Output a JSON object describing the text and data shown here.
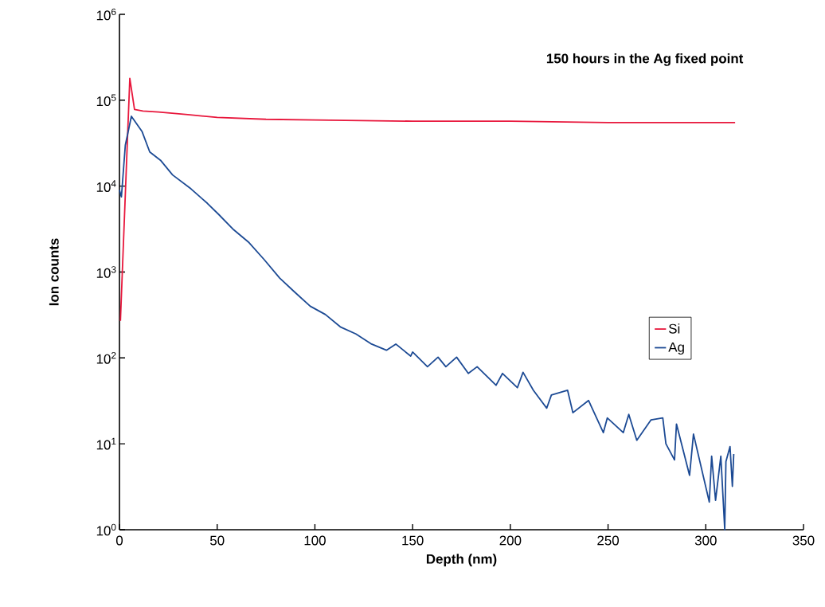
{
  "chart_data": {
    "type": "line",
    "title": "150 hours in the Ag fixed point",
    "xlabel": "Depth (nm)",
    "ylabel": "Ion counts",
    "log": "y",
    "grid": false,
    "legend": "right",
    "marker": "none",
    "line_style": "solid",
    "xlim": [
      0,
      350
    ],
    "xticks": [
      0,
      50,
      100,
      150,
      200,
      250,
      300,
      350
    ],
    "ylim": [
      1,
      1000000
    ],
    "yticks": [
      {
        "value": 1,
        "label": "10$^{0}$"
      },
      {
        "value": 10,
        "label": "10$^{1}$"
      },
      {
        "value": 100,
        "label": "10$^{2}$"
      },
      {
        "value": 1000,
        "label": "10$^{3}$"
      },
      {
        "value": 10000,
        "label": "10$^{4}$"
      },
      {
        "value": 100000,
        "label": "10$^{5}$"
      },
      {
        "value": 1000000,
        "label": "10$^{6}$"
      }
    ],
    "series": [
      {
        "name": "Si",
        "color": "#e8173c",
        "x": [
          0.5,
          5.3,
          7.7,
          12,
          20,
          35,
          50,
          75,
          100,
          150,
          200,
          250,
          300,
          315
        ],
        "values": [
          270,
          180000,
          78000,
          75000,
          73000,
          68000,
          63000,
          60000,
          59000,
          57000,
          57000,
          55000,
          55000,
          55000
        ]
      },
      {
        "name": "Ag",
        "color": "#1c4a94",
        "x": [
          0,
          1,
          3,
          6.1,
          11.6,
          15.5,
          21,
          27.2,
          36.6,
          45,
          50.7,
          58.5,
          66.3,
          74,
          82,
          89.8,
          97.6,
          105.4,
          113,
          121,
          129,
          136.6,
          141.4,
          149,
          150,
          157.6,
          163,
          167,
          172.5,
          178.5,
          183,
          192.7,
          196,
          203.6,
          206.5,
          211.8,
          218.6,
          221,
          229.3,
          232,
          240,
          247.6,
          249.6,
          257.8,
          260.6,
          264.7,
          272,
          278,
          279.6,
          284,
          285,
          291.7,
          293.7,
          301.8,
          303,
          305,
          307.7,
          309.7,
          310.3,
          312.4,
          313.6,
          314.3
        ],
        "values": [
          9000,
          7500,
          30000,
          65000,
          43000,
          25000,
          20000,
          13500,
          9300,
          6300,
          4700,
          3100,
          2200,
          1400,
          850,
          580,
          400,
          320,
          230,
          190,
          145,
          123,
          145,
          105,
          117,
          79,
          102,
          79,
          102,
          66,
          79,
          48,
          66,
          45,
          68,
          42,
          26,
          37,
          42,
          23,
          32,
          13.5,
          20,
          13.5,
          22,
          11,
          19,
          20,
          10,
          6.5,
          17,
          4.3,
          13,
          2.1,
          7.2,
          2.2,
          7.2,
          1,
          6.2,
          9.3,
          3.2,
          7.6
        ]
      }
    ]
  }
}
